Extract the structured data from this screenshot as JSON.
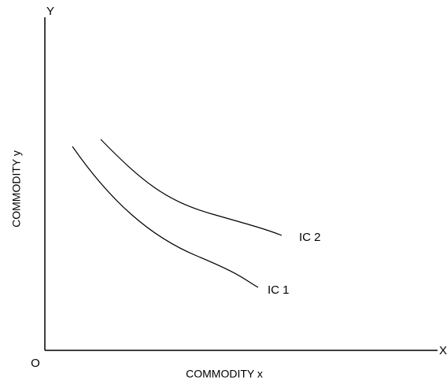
{
  "axes": {
    "y_label": "Y",
    "x_label": "X",
    "origin": "O",
    "y_title": "COMMODITY  y",
    "x_title": "COMMODITY  x"
  },
  "curves": [
    {
      "label": "IC 1"
    },
    {
      "label": "IC 2"
    }
  ]
}
